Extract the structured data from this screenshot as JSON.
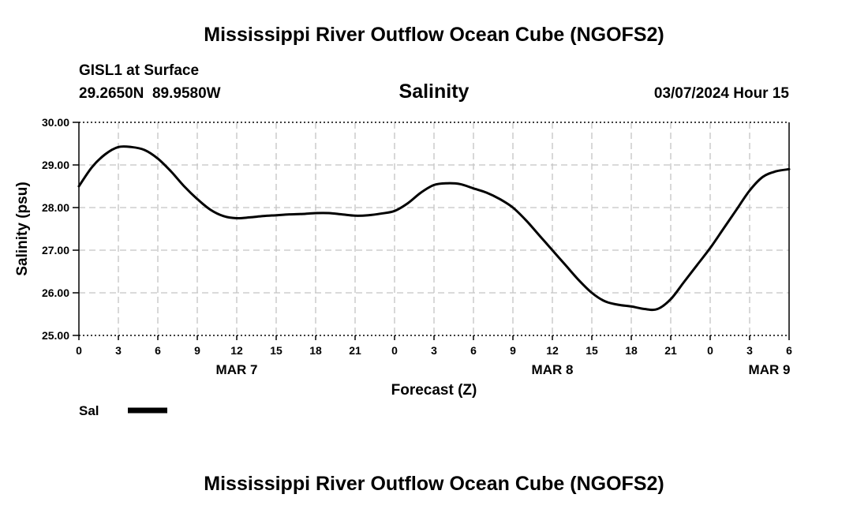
{
  "page_title": "Mississippi River Outflow Ocean Cube (NGOFS2)",
  "footer_title": "Mississippi River Outflow Ocean Cube (NGOFS2)",
  "station": {
    "name": "GISL1 at Surface",
    "coordinates": "29.2650N  89.9580W",
    "datetime": "03/07/2024 Hour 15"
  },
  "chart_data": {
    "type": "line",
    "title": "Salinity",
    "xlabel": "Forecast (Z)",
    "ylabel": "Salinity (psu)",
    "ylim": [
      25,
      30
    ],
    "xlim": [
      0,
      54
    ],
    "x_units": "hours since 03/07/2024 00Z",
    "yticks": [
      {
        "value": 25,
        "label": "25.00"
      },
      {
        "value": 26,
        "label": "26.00"
      },
      {
        "value": 27,
        "label": "27.00"
      },
      {
        "value": 28,
        "label": "28.00"
      },
      {
        "value": 29,
        "label": "29.00"
      },
      {
        "value": 30,
        "label": "30.00"
      }
    ],
    "xticks": [
      {
        "value": 0,
        "label": "0"
      },
      {
        "value": 3,
        "label": "3"
      },
      {
        "value": 6,
        "label": "6"
      },
      {
        "value": 9,
        "label": "9"
      },
      {
        "value": 12,
        "label": "12"
      },
      {
        "value": 15,
        "label": "15"
      },
      {
        "value": 18,
        "label": "18"
      },
      {
        "value": 21,
        "label": "21"
      },
      {
        "value": 24,
        "label": "0"
      },
      {
        "value": 27,
        "label": "3"
      },
      {
        "value": 30,
        "label": "6"
      },
      {
        "value": 33,
        "label": "9"
      },
      {
        "value": 36,
        "label": "12"
      },
      {
        "value": 39,
        "label": "15"
      },
      {
        "value": 42,
        "label": "18"
      },
      {
        "value": 45,
        "label": "21"
      },
      {
        "value": 48,
        "label": "0"
      },
      {
        "value": 51,
        "label": "3"
      },
      {
        "value": 54,
        "label": "6"
      }
    ],
    "date_labels": [
      {
        "value": 12,
        "label": "MAR 7"
      },
      {
        "value": 36,
        "label": "MAR 8"
      },
      {
        "value": 52.5,
        "label": "MAR 9"
      }
    ],
    "grid": true,
    "series": [
      {
        "name": "Sal",
        "x": [
          0,
          1,
          2,
          3,
          4,
          5,
          6,
          7,
          8,
          9,
          10,
          11,
          12,
          13,
          14,
          15,
          16,
          17,
          18,
          19,
          20,
          21,
          22,
          23,
          24,
          25,
          26,
          27,
          28,
          29,
          30,
          31,
          32,
          33,
          34,
          35,
          36,
          37,
          38,
          39,
          40,
          41,
          42,
          43,
          44,
          45,
          46,
          47,
          48,
          49,
          50,
          51,
          52,
          53,
          54
        ],
        "values": [
          28.5,
          28.95,
          29.25,
          29.42,
          29.42,
          29.35,
          29.15,
          28.85,
          28.5,
          28.2,
          27.95,
          27.8,
          27.75,
          27.77,
          27.8,
          27.82,
          27.84,
          27.85,
          27.87,
          27.87,
          27.84,
          27.81,
          27.82,
          27.86,
          27.92,
          28.1,
          28.35,
          28.53,
          28.57,
          28.55,
          28.45,
          28.35,
          28.2,
          28.0,
          27.7,
          27.35,
          27.0,
          26.65,
          26.3,
          26.0,
          25.8,
          25.72,
          25.68,
          25.62,
          25.62,
          25.85,
          26.25,
          26.65,
          27.05,
          27.5,
          27.95,
          28.4,
          28.72,
          28.85,
          28.9
        ]
      }
    ],
    "legend": {
      "position": "bottom-left",
      "label": "Sal"
    }
  }
}
